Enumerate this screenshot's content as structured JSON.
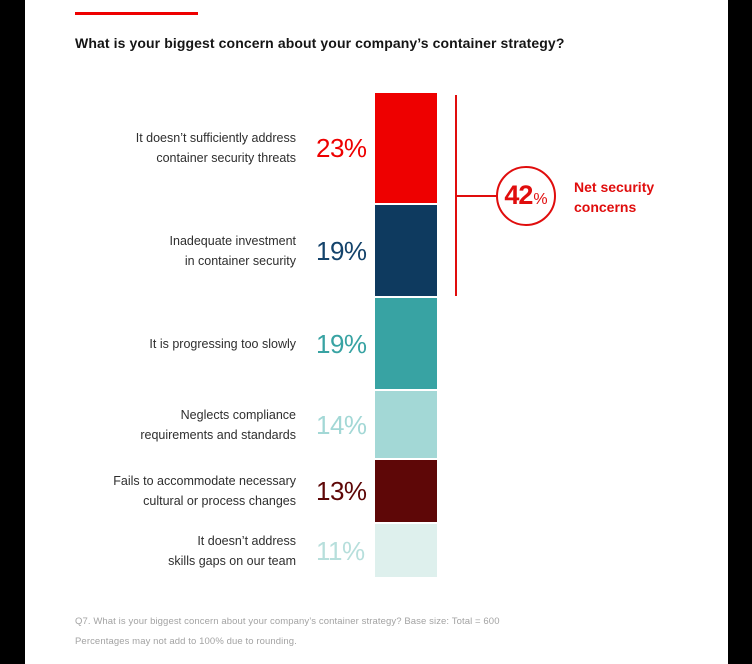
{
  "header": {
    "title": "What is your biggest concern about your company’s container strategy?",
    "accent_color": "#ee0000"
  },
  "chart_data": {
    "type": "bar",
    "subtype": "single-column-stacked-vertical",
    "unit": "percent",
    "title": "What is your biggest concern about your company’s container strategy?",
    "categories": [
      "It doesn’t sufficiently address container security threats",
      "Inadequate investment in container security",
      "It is progressing too slowly",
      "Neglects compliance requirements and standards",
      "Fails to accommodate necessary cultural or process changes",
      "It doesn’t address skills gaps on our team"
    ],
    "values": [
      23,
      19,
      19,
      14,
      13,
      11
    ],
    "rows": [
      {
        "line1": "It doesn’t sufficiently address",
        "line2": "container security threats",
        "pct": "23%",
        "value": 23,
        "color": "#ee0000",
        "pct_color": "#ee0000"
      },
      {
        "line1": "Inadequate investment",
        "line2": "in container security",
        "pct": "19%",
        "value": 19,
        "color": "#0e3a5f",
        "pct_color": "#14436b"
      },
      {
        "line1": "It is progressing too slowly",
        "line2": "",
        "pct": "19%",
        "value": 19,
        "color": "#38a3a3",
        "pct_color": "#38a3a3"
      },
      {
        "line1": "Neglects compliance",
        "line2": "requirements and standards",
        "pct": "14%",
        "value": 14,
        "color": "#a3d8d6",
        "pct_color": "#a3d8d6"
      },
      {
        "line1": "Fails to accommodate necessary",
        "line2": "cultural or process changes",
        "pct": "13%",
        "value": 13,
        "color": "#5e0707",
        "pct_color": "#5e0707"
      },
      {
        "line1": "It doesn’t address",
        "line2": "skills gaps on our team",
        "pct": "11%",
        "value": 11,
        "color": "#def0ed",
        "pct_color": "#b7dfdc"
      }
    ],
    "net": {
      "value": "42",
      "suffix": "%",
      "label": "Net security concerns",
      "color": "#e00d0d",
      "applies_to": [
        "It doesn’t sufficiently address container security threats",
        "Inadequate investment in container security"
      ]
    },
    "legend": "none",
    "grid": false
  },
  "footnote": {
    "line1": "Q7. What is your biggest concern about your company’s container strategy? Base size: Total = 600",
    "line2": "Percentages may not add to 100% due to rounding."
  }
}
